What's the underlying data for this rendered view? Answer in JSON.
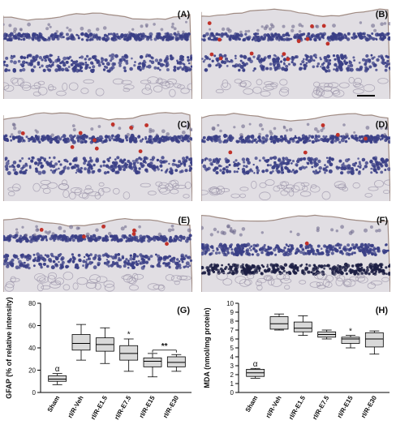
{
  "panels": [
    {
      "label": "(A)",
      "type": "sham",
      "red_marks": 0
    },
    {
      "label": "(B)",
      "type": "injury",
      "red_marks": 12
    },
    {
      "label": "(C)",
      "type": "injury",
      "red_marks": 9
    },
    {
      "label": "(D)",
      "type": "injury",
      "red_marks": 5
    },
    {
      "label": "(E)",
      "type": "injury",
      "red_marks": 6
    },
    {
      "label": "(F)",
      "type": "dense",
      "red_marks": 1
    }
  ],
  "colors": {
    "stain_blue": "#3a3f86",
    "stain_red": "#c0322a",
    "tissue": "#c8c2cc",
    "box_fill": "#d9d9d9"
  },
  "chart_data": [
    {
      "type": "boxplot",
      "panel_label": "(G)",
      "ylabel": "GFAP (% of relative intensity)",
      "categories": [
        "Sham",
        "rI/R-Veh",
        "rI/R-E1.5",
        "rI/R-E7.5",
        "rI/R-E15",
        "rI/R-E30"
      ],
      "ylim": [
        0,
        80
      ],
      "yticks": [
        0,
        20,
        40,
        60,
        80
      ],
      "boxes": [
        {
          "min": 7,
          "q1": 10,
          "median": 12,
          "q3": 15,
          "max": 17
        },
        {
          "min": 29,
          "q1": 38,
          "median": 44,
          "q3": 52,
          "max": 61
        },
        {
          "min": 26,
          "q1": 37,
          "median": 43,
          "q3": 49,
          "max": 58
        },
        {
          "min": 19,
          "q1": 29,
          "median": 35,
          "q3": 42,
          "max": 48
        },
        {
          "min": 14,
          "q1": 23,
          "median": 28,
          "q3": 31,
          "max": 35
        },
        {
          "min": 19,
          "q1": 23,
          "median": 27,
          "q3": 32,
          "max": 34
        }
      ],
      "annotations": [
        {
          "text": "α",
          "category": 0,
          "y": 19
        },
        {
          "text": "*",
          "category": 3,
          "y": 50
        },
        {
          "text": "**",
          "from": 4,
          "to": 5,
          "y": 38
        }
      ]
    },
    {
      "type": "boxplot",
      "panel_label": "(H)",
      "ylabel": "MDA (nmol/mg protein)",
      "categories": [
        "Sham",
        "rI/R-Veh",
        "rI/R-E1.5",
        "rI/R-E7.5",
        "rI/R-E15",
        "rI/R-E30"
      ],
      "ylim": [
        0,
        10
      ],
      "yticks": [
        0,
        1,
        2,
        3,
        4,
        5,
        6,
        7,
        8,
        9,
        10
      ],
      "boxes": [
        {
          "min": 1.6,
          "q1": 1.8,
          "median": 2.2,
          "q3": 2.6,
          "max": 2.7
        },
        {
          "min": 7.0,
          "q1": 7.1,
          "median": 7.7,
          "q3": 8.5,
          "max": 8.8
        },
        {
          "min": 6.4,
          "q1": 6.8,
          "median": 7.2,
          "q3": 7.9,
          "max": 8.6
        },
        {
          "min": 6.0,
          "q1": 6.2,
          "median": 6.5,
          "q3": 6.8,
          "max": 7.0
        },
        {
          "min": 5.0,
          "q1": 5.5,
          "median": 6.0,
          "q3": 6.2,
          "max": 6.4
        },
        {
          "min": 4.3,
          "q1": 5.1,
          "median": 6.0,
          "q3": 6.7,
          "max": 6.9
        }
      ],
      "annotations": [
        {
          "text": "α",
          "category": 0,
          "y": 2.9
        },
        {
          "text": "*",
          "category": 4,
          "y": 6.6
        }
      ]
    }
  ]
}
